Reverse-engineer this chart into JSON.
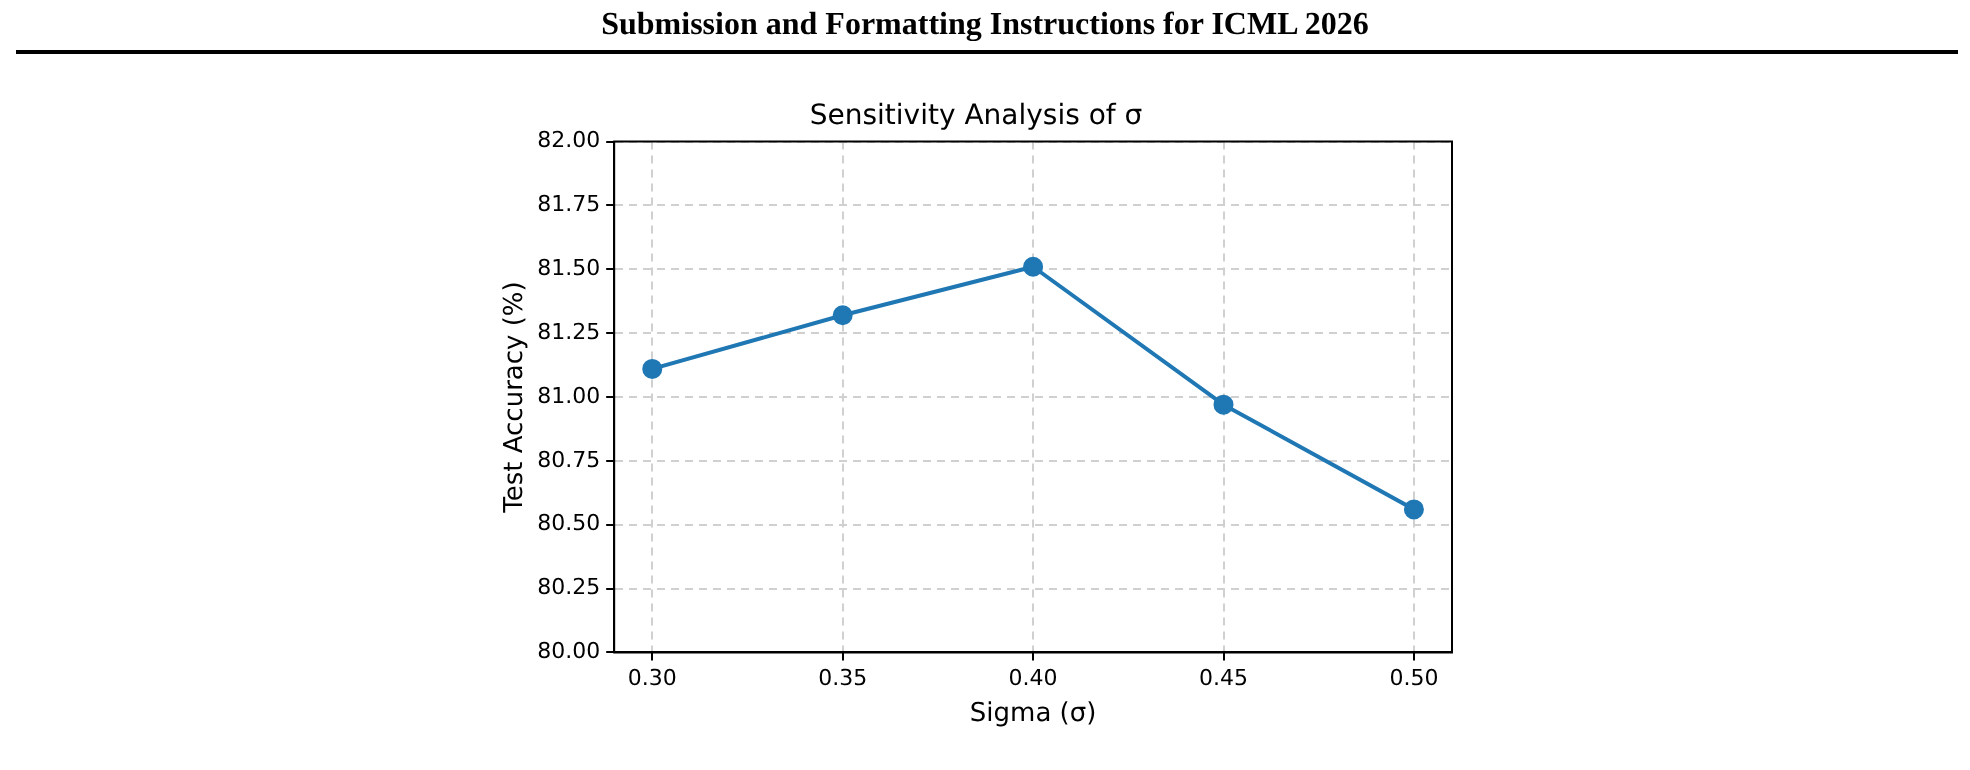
{
  "chart_data": {
    "type": "line",
    "title": "Sensitivity Analysis of σ",
    "xlabel": "Sigma (σ)",
    "ylabel": "Test Accuracy (%)",
    "annotations": [
      "Submission and Formatting Instructions for ICML 2026"
    ],
    "x": [
      0.3,
      0.35,
      0.4,
      0.45,
      0.5
    ],
    "series": [
      {
        "color": "#1f77b4",
        "values": [
          81.11,
          81.32,
          81.51,
          80.97,
          80.56
        ]
      }
    ],
    "xlim": [
      0.29,
      0.51
    ],
    "xticks": [
      {
        "value": 0.3,
        "label": "0.30"
      },
      {
        "value": 0.35,
        "label": "0.35"
      },
      {
        "value": 0.4,
        "label": "0.40"
      },
      {
        "value": 0.45,
        "label": "0.45"
      },
      {
        "value": 0.5,
        "label": "0.50"
      }
    ],
    "ylim": [
      80,
      82
    ],
    "yticks": [
      {
        "value": 80,
        "label": "80.00"
      },
      {
        "value": 80.25,
        "label": "80.25"
      },
      {
        "value": 80.5,
        "label": "80.50"
      },
      {
        "value": 80.75,
        "label": "80.75"
      },
      {
        "value": 81,
        "label": "81.00"
      },
      {
        "value": 81.25,
        "label": "81.25"
      },
      {
        "value": 81.5,
        "label": "81.50"
      },
      {
        "value": 81.75,
        "label": "81.75"
      },
      {
        "value": 82,
        "label": "82.00"
      }
    ],
    "grid": true,
    "marker": "circle",
    "line_style": "solid",
    "legend": false
  }
}
